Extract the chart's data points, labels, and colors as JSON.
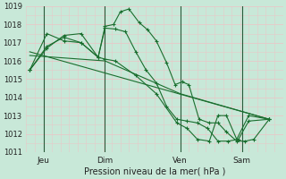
{
  "background_color": "#c8e8d8",
  "grid_color": "#e8c8c8",
  "line_color": "#1a6e2e",
  "vline_color": "#2a5a3a",
  "xlabel": "Pression niveau de la mer( hPa )",
  "ylim": [
    1011,
    1019
  ],
  "xlim": [
    0,
    7.5
  ],
  "yticks": [
    1011,
    1012,
    1013,
    1014,
    1015,
    1016,
    1017,
    1018,
    1019
  ],
  "xtick_labels": [
    "Jeu",
    "Dim",
    "Ven",
    "Sam"
  ],
  "xtick_positions": [
    0.5,
    2.3,
    4.5,
    6.3
  ],
  "vlines": [
    0.5,
    2.3,
    4.5,
    6.3
  ],
  "series1": {
    "x": [
      0.1,
      0.6,
      1.1,
      1.6,
      2.1,
      2.3,
      2.55,
      2.75,
      3.0,
      3.3,
      3.55,
      3.8,
      4.1,
      4.35,
      4.55,
      4.75,
      5.05,
      5.35,
      5.6,
      5.85,
      6.15,
      6.4,
      6.65,
      7.1
    ],
    "y": [
      1015.5,
      1016.7,
      1017.4,
      1017.5,
      1016.2,
      1017.9,
      1018.0,
      1018.7,
      1018.85,
      1018.1,
      1017.7,
      1017.1,
      1015.9,
      1014.7,
      1014.85,
      1014.7,
      1012.8,
      1012.6,
      1012.6,
      1012.1,
      1011.6,
      1011.6,
      1011.7,
      1012.8
    ]
  },
  "series2": {
    "x": [
      0.1,
      0.6,
      1.1,
      1.6,
      2.1,
      2.3,
      2.6,
      2.9,
      3.2,
      3.5,
      3.8,
      4.1,
      4.4,
      4.7,
      5.0,
      5.3,
      5.6,
      5.9,
      6.2,
      6.5,
      7.1
    ],
    "y": [
      1015.5,
      1017.5,
      1017.1,
      1017.0,
      1016.2,
      1017.8,
      1017.75,
      1017.6,
      1016.5,
      1015.5,
      1014.8,
      1013.5,
      1012.8,
      1012.7,
      1012.6,
      1012.3,
      1011.6,
      1011.6,
      1011.7,
      1012.7,
      1012.8
    ]
  },
  "series3": {
    "x": [
      0.1,
      7.1
    ],
    "y": [
      1016.5,
      1012.8
    ]
  },
  "series4": {
    "x": [
      0.1,
      2.3,
      4.5,
      7.1
    ],
    "y": [
      1016.3,
      1016.0,
      1014.2,
      1012.8
    ]
  },
  "series5": {
    "x": [
      0.1,
      0.6,
      1.1,
      1.6,
      2.1,
      2.3,
      2.6,
      3.2,
      3.8,
      4.4,
      4.7,
      5.0,
      5.35,
      5.6,
      5.85,
      6.15,
      6.5,
      7.1
    ],
    "y": [
      1015.5,
      1016.8,
      1017.3,
      1017.0,
      1016.2,
      1016.1,
      1016.0,
      1015.2,
      1014.2,
      1012.6,
      1012.3,
      1011.7,
      1011.6,
      1013.0,
      1013.0,
      1011.7,
      1013.0,
      1012.8
    ]
  }
}
